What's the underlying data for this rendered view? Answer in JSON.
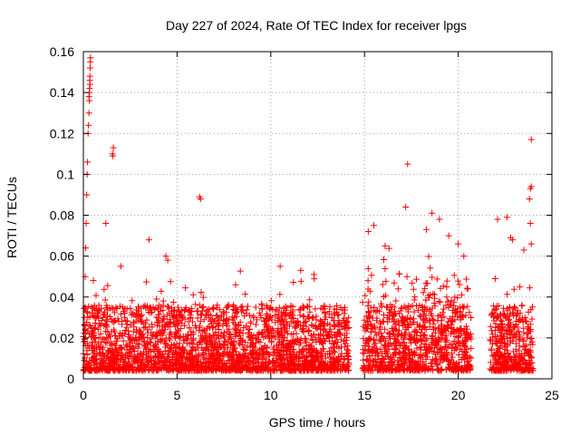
{
  "chart_data": {
    "type": "scatter",
    "title": "Day 227 of 2024, Rate Of TEC Index for receiver lpgs",
    "xlabel": "GPS time / hours",
    "ylabel": "ROTI / TECUs",
    "xlim": [
      0,
      25
    ],
    "ylim": [
      0,
      0.16
    ],
    "xticks": [
      0,
      5,
      10,
      15,
      20,
      25
    ],
    "xtick_labels": [
      "0",
      "5",
      "10",
      "15",
      "20",
      "25"
    ],
    "yticks": [
      0,
      0.02,
      0.04,
      0.06,
      0.08,
      0.1,
      0.12,
      0.14,
      0.16
    ],
    "ytick_labels": [
      "0",
      "0.02",
      "0.04",
      "0.06",
      "0.08",
      "0.1",
      "0.12",
      "0.14",
      "0.16"
    ],
    "grid": true,
    "marker": "+",
    "color": "#ff0000",
    "data_gaps_hours": [
      [
        14.2,
        14.9
      ],
      [
        20.7,
        21.7
      ]
    ],
    "series": [
      {
        "name": "ROTI",
        "points": [
          [
            0.05,
            0.03
          ],
          [
            0.1,
            0.05
          ],
          [
            0.12,
            0.064
          ],
          [
            0.15,
            0.076
          ],
          [
            0.18,
            0.09
          ],
          [
            0.2,
            0.1
          ],
          [
            0.22,
            0.106
          ],
          [
            0.25,
            0.12
          ],
          [
            0.27,
            0.124
          ],
          [
            0.3,
            0.13
          ],
          [
            0.3,
            0.138
          ],
          [
            0.32,
            0.14
          ],
          [
            0.33,
            0.142
          ],
          [
            0.34,
            0.146
          ],
          [
            0.35,
            0.148
          ],
          [
            0.36,
            0.152
          ],
          [
            0.37,
            0.155
          ],
          [
            0.38,
            0.157
          ],
          [
            0.36,
            0.144
          ],
          [
            0.32,
            0.136
          ],
          [
            1.2,
            0.076
          ],
          [
            1.55,
            0.11
          ],
          [
            1.6,
            0.113
          ],
          [
            1.58,
            0.109
          ],
          [
            6.2,
            0.089
          ],
          [
            6.25,
            0.088
          ],
          [
            2.0,
            0.055
          ],
          [
            3.5,
            0.068
          ],
          [
            4.4,
            0.06
          ],
          [
            4.5,
            0.058
          ],
          [
            10.5,
            0.055
          ],
          [
            11.6,
            0.053
          ],
          [
            12.3,
            0.051
          ],
          [
            15.2,
            0.072
          ],
          [
            15.5,
            0.075
          ],
          [
            16.1,
            0.065
          ],
          [
            17.3,
            0.105
          ],
          [
            17.2,
            0.084
          ],
          [
            18.3,
            0.073
          ],
          [
            18.6,
            0.081
          ],
          [
            19.0,
            0.078
          ],
          [
            19.5,
            0.07
          ],
          [
            20.0,
            0.066
          ],
          [
            20.3,
            0.06
          ],
          [
            22.1,
            0.078
          ],
          [
            22.6,
            0.079
          ],
          [
            22.8,
            0.069
          ],
          [
            22.9,
            0.068
          ],
          [
            23.5,
            0.063
          ],
          [
            23.9,
            0.117
          ],
          [
            23.9,
            0.094
          ],
          [
            23.85,
            0.093
          ],
          [
            23.8,
            0.088
          ],
          [
            23.85,
            0.076
          ],
          [
            23.9,
            0.066
          ]
        ]
      }
    ]
  }
}
